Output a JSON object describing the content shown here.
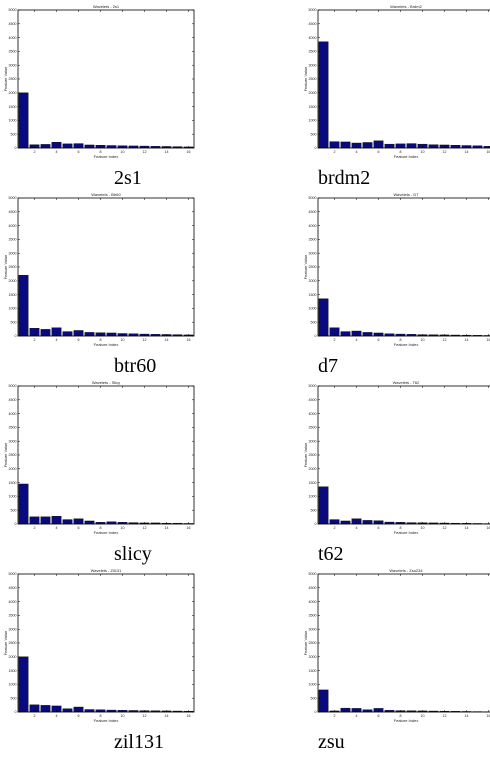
{
  "colors": {
    "bar": "#0a0a80",
    "axis": "#000000"
  },
  "chart_data": [
    {
      "type": "bar",
      "title": "Wavelets - 2s1",
      "caption": "2s1",
      "xlabel": "Feature Index",
      "ylabel": "Feature Value",
      "categories": [
        1,
        2,
        3,
        4,
        5,
        6,
        7,
        8,
        9,
        10,
        11,
        12,
        13,
        14,
        15,
        16
      ],
      "values": [
        2000,
        120,
        130,
        210,
        150,
        160,
        110,
        100,
        90,
        80,
        75,
        70,
        60,
        55,
        50,
        40
      ],
      "xlim": [
        0.5,
        16.5
      ],
      "ylim": [
        0,
        5000
      ],
      "xticks": [
        2,
        4,
        6,
        8,
        10,
        12,
        14,
        16
      ],
      "yticks": [
        0,
        500,
        1000,
        1500,
        2000,
        2500,
        3000,
        3500,
        4000,
        4500,
        5000
      ]
    },
    {
      "type": "bar",
      "title": "Wavelets - Brdm2",
      "caption": "brdm2",
      "xlabel": "Feature Index",
      "ylabel": "Feature Value",
      "categories": [
        1,
        2,
        3,
        4,
        5,
        6,
        7,
        8,
        9,
        10,
        11,
        12,
        13,
        14,
        15,
        16
      ],
      "values": [
        3850,
        230,
        220,
        180,
        200,
        260,
        140,
        150,
        160,
        140,
        120,
        110,
        100,
        90,
        80,
        60
      ],
      "xlim": [
        0.5,
        16.5
      ],
      "ylim": [
        0,
        5000
      ],
      "xticks": [
        2,
        4,
        6,
        8,
        10,
        12,
        14,
        16
      ],
      "yticks": [
        0,
        500,
        1000,
        1500,
        2000,
        2500,
        3000,
        3500,
        4000,
        4500,
        5000
      ]
    },
    {
      "type": "bar",
      "title": "Wavelets - Btr60",
      "caption": "btr60",
      "xlabel": "Feature Index",
      "ylabel": "Feature Value",
      "categories": [
        1,
        2,
        3,
        4,
        5,
        6,
        7,
        8,
        9,
        10,
        11,
        12,
        13,
        14,
        15,
        16
      ],
      "values": [
        2200,
        280,
        240,
        300,
        160,
        200,
        130,
        120,
        110,
        90,
        80,
        70,
        60,
        55,
        50,
        40
      ],
      "xlim": [
        0.5,
        16.5
      ],
      "ylim": [
        0,
        5000
      ],
      "xticks": [
        2,
        4,
        6,
        8,
        10,
        12,
        14,
        16
      ],
      "yticks": [
        0,
        500,
        1000,
        1500,
        2000,
        2500,
        3000,
        3500,
        4000,
        4500,
        5000
      ]
    },
    {
      "type": "bar",
      "title": "Wavelets - D7",
      "caption": "d7",
      "xlabel": "Feature Index",
      "ylabel": "Feature Value",
      "categories": [
        1,
        2,
        3,
        4,
        5,
        6,
        7,
        8,
        9,
        10,
        11,
        12,
        13,
        14,
        15,
        16
      ],
      "values": [
        1350,
        300,
        160,
        180,
        130,
        110,
        80,
        70,
        60,
        50,
        45,
        40,
        35,
        30,
        25,
        20
      ],
      "xlim": [
        0.5,
        16.5
      ],
      "ylim": [
        0,
        5000
      ],
      "xticks": [
        2,
        4,
        6,
        8,
        10,
        12,
        14,
        16
      ],
      "yticks": [
        0,
        500,
        1000,
        1500,
        2000,
        2500,
        3000,
        3500,
        4000,
        4500,
        5000
      ]
    },
    {
      "type": "bar",
      "title": "Wavelets - Slicy",
      "caption": "slicy",
      "xlabel": "Feature Index",
      "ylabel": "Feature Value",
      "categories": [
        1,
        2,
        3,
        4,
        5,
        6,
        7,
        8,
        9,
        10,
        11,
        12,
        13,
        14,
        15,
        16
      ],
      "values": [
        1450,
        260,
        260,
        280,
        160,
        190,
        110,
        60,
        80,
        60,
        50,
        40,
        40,
        30,
        30,
        20
      ],
      "xlim": [
        0.5,
        16.5
      ],
      "ylim": [
        0,
        5000
      ],
      "xticks": [
        2,
        4,
        6,
        8,
        10,
        12,
        14,
        16
      ],
      "yticks": [
        0,
        500,
        1000,
        1500,
        2000,
        2500,
        3000,
        3500,
        4000,
        4500,
        5000
      ]
    },
    {
      "type": "bar",
      "title": "Wavelets - T62",
      "caption": "t62",
      "xlabel": "Feature Index",
      "ylabel": "Feature Value",
      "categories": [
        1,
        2,
        3,
        4,
        5,
        6,
        7,
        8,
        9,
        10,
        11,
        12,
        13,
        14,
        15,
        16
      ],
      "values": [
        1350,
        160,
        110,
        190,
        130,
        120,
        70,
        60,
        50,
        45,
        40,
        35,
        30,
        25,
        20,
        15
      ],
      "xlim": [
        0.5,
        16.5
      ],
      "ylim": [
        0,
        5000
      ],
      "xticks": [
        2,
        4,
        6,
        8,
        10,
        12,
        14,
        16
      ],
      "yticks": [
        0,
        500,
        1000,
        1500,
        2000,
        2500,
        3000,
        3500,
        4000,
        4500,
        5000
      ]
    },
    {
      "type": "bar",
      "title": "Wavelets - Zil131",
      "caption": "zil131",
      "xlabel": "Feature Index",
      "ylabel": "Feature Value",
      "categories": [
        1,
        2,
        3,
        4,
        5,
        6,
        7,
        8,
        9,
        10,
        11,
        12,
        13,
        14,
        15,
        16
      ],
      "values": [
        2000,
        260,
        240,
        220,
        120,
        180,
        90,
        80,
        70,
        60,
        55,
        50,
        45,
        40,
        35,
        30
      ],
      "xlim": [
        0.5,
        16.5
      ],
      "ylim": [
        0,
        5000
      ],
      "xticks": [
        2,
        4,
        6,
        8,
        10,
        12,
        14,
        16
      ],
      "yticks": [
        0,
        500,
        1000,
        1500,
        2000,
        2500,
        3000,
        3500,
        4000,
        4500,
        5000
      ]
    },
    {
      "type": "bar",
      "title": "Wavelets - Zsu234",
      "caption": "zsu",
      "xlabel": "Feature Index",
      "ylabel": "Feature Value",
      "categories": [
        1,
        2,
        3,
        4,
        5,
        6,
        7,
        8,
        9,
        10,
        11,
        12,
        13,
        14,
        15,
        16
      ],
      "values": [
        800,
        40,
        140,
        130,
        80,
        130,
        60,
        50,
        45,
        40,
        35,
        30,
        25,
        20,
        15,
        10
      ],
      "xlim": [
        0.5,
        16.5
      ],
      "ylim": [
        0,
        5000
      ],
      "xticks": [
        2,
        4,
        6,
        8,
        10,
        12,
        14,
        16
      ],
      "yticks": [
        0,
        500,
        1000,
        1500,
        2000,
        2500,
        3000,
        3500,
        4000,
        4500,
        5000
      ]
    }
  ]
}
